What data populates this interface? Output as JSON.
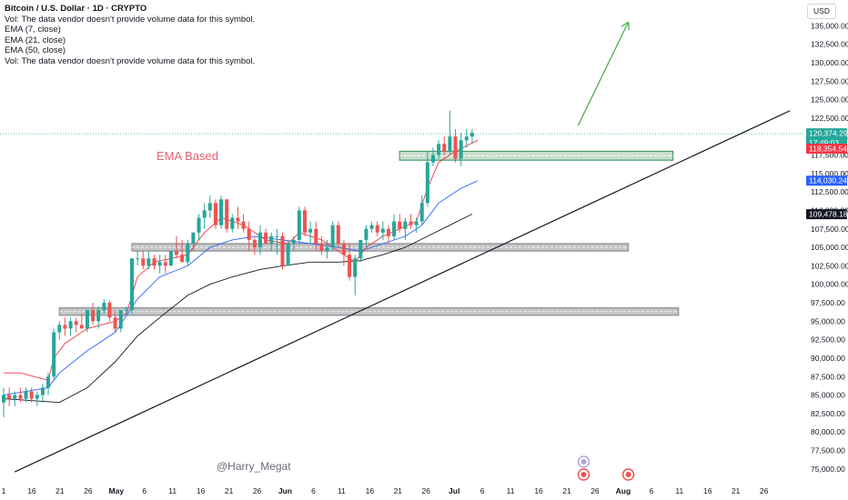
{
  "legend": {
    "title": "Bitcoin / U.S. Dollar · 1D · CRYPTO",
    "line1": "Vol: The data vendor doesn't provide volume data for this symbol.",
    "line2": "EMA (7, close)",
    "line3": "EMA (21, close)",
    "line4": "EMA (50, close)",
    "line5": "Vol: The data vendor doesn't provide volume data for this symbol."
  },
  "currency": "USD",
  "annotation": "EMA Based",
  "watermark": "@Harry_Megat",
  "colors": {
    "up": "#26a69a",
    "down": "#ef5350",
    "ema7": "#f23645",
    "ema21": "#2962ff",
    "ema50": "#131722",
    "arrow": "#4caf50",
    "zone_green": "#4c9a6a",
    "zone_gray": "#8a8c90"
  },
  "chart_data": {
    "type": "candlestick",
    "price_axis": {
      "ticks": [
        "135,000.00",
        "132,500.00",
        "130,000.00",
        "127,500.00",
        "125,000.00",
        "122,500.00",
        "120,000.00",
        "117,500.00",
        "115,000.00",
        "112,500.00",
        "110,000.00",
        "107,500.00",
        "105,000.00",
        "102,500.00",
        "100,000.00",
        "97,500.00",
        "95,000.00",
        "92,500.00",
        "90,000.00",
        "87,500.00",
        "85,000.00",
        "82,500.00",
        "80,000.00",
        "77,500.00",
        "75,000.00"
      ],
      "min": 73500,
      "max": 137500
    },
    "time_axis": {
      "labels": [
        "1",
        "16",
        "21",
        "26",
        "May",
        "6",
        "11",
        "16",
        "21",
        "26",
        "Jun",
        "6",
        "11",
        "16",
        "21",
        "26",
        "Jul",
        "6",
        "11",
        "16",
        "21",
        "26",
        "Aug",
        "6",
        "11",
        "16",
        "21",
        "26"
      ]
    },
    "price_tags": [
      {
        "value": 120374.29,
        "label": "120,374.29",
        "sublabel": "17:49:03",
        "color": "#26a69a"
      },
      {
        "value": 118354.54,
        "label": "118,354.54",
        "color": "#f23645"
      },
      {
        "value": 114030.24,
        "label": "114,030.24",
        "color": "#2962ff"
      },
      {
        "value": 109478.18,
        "label": "109,478.18",
        "color": "#131722"
      }
    ],
    "candles": [
      [
        84000,
        86000,
        82000,
        85000
      ],
      [
        85000,
        86000,
        83500,
        84500
      ],
      [
        84500,
        85500,
        83500,
        85000
      ],
      [
        85000,
        86000,
        84000,
        84500
      ],
      [
        84500,
        86000,
        84000,
        85500
      ],
      [
        85500,
        86000,
        84000,
        84500
      ],
      [
        84500,
        85500,
        83500,
        85000
      ],
      [
        85000,
        86500,
        84000,
        86000
      ],
      [
        86000,
        88000,
        85000,
        87500
      ],
      [
        87500,
        94000,
        87000,
        93500
      ],
      [
        93500,
        95000,
        92500,
        94500
      ],
      [
        94500,
        95500,
        93000,
        94000
      ],
      [
        94000,
        95500,
        93000,
        95000
      ],
      [
        95000,
        95500,
        93500,
        94500
      ],
      [
        94500,
        96000,
        94000,
        94000
      ],
      [
        94000,
        96500,
        93500,
        96500
      ],
      [
        96500,
        97500,
        94500,
        95000
      ],
      [
        95000,
        97000,
        94000,
        96500
      ],
      [
        96500,
        98000,
        96000,
        97500
      ],
      [
        97500,
        97800,
        95000,
        95500
      ],
      [
        95500,
        96500,
        93500,
        94000
      ],
      [
        94000,
        96500,
        93500,
        96500
      ],
      [
        96500,
        97000,
        96000,
        96500
      ],
      [
        96500,
        103500,
        96000,
        103500
      ],
      [
        103500,
        104500,
        102500,
        103500
      ],
      [
        103500,
        104500,
        102000,
        102500
      ],
      [
        102500,
        104500,
        102000,
        103500
      ],
      [
        103500,
        104000,
        102000,
        102500
      ],
      [
        102500,
        104000,
        101500,
        103000
      ],
      [
        103000,
        104000,
        101500,
        102500
      ],
      [
        102500,
        104500,
        102500,
        104500
      ],
      [
        104500,
        106500,
        103500,
        104000
      ],
      [
        104000,
        106000,
        103000,
        103000
      ],
      [
        103000,
        106000,
        102500,
        105500
      ],
      [
        105500,
        107000,
        104500,
        107000
      ],
      [
        107000,
        109500,
        106000,
        109000
      ],
      [
        109000,
        111000,
        107500,
        110000
      ],
      [
        110000,
        112000,
        109000,
        111000
      ],
      [
        111000,
        111500,
        107500,
        108000
      ],
      [
        108000,
        112000,
        107500,
        111500
      ],
      [
        111500,
        111500,
        107000,
        107500
      ],
      [
        107500,
        109500,
        107000,
        109000
      ],
      [
        109000,
        110500,
        107500,
        108500
      ],
      [
        108500,
        109500,
        107000,
        107500
      ],
      [
        107500,
        108500,
        104500,
        106000
      ],
      [
        106000,
        106500,
        104000,
        105000
      ],
      [
        105000,
        108000,
        104000,
        107000
      ],
      [
        107000,
        107500,
        105500,
        105500
      ],
      [
        105500,
        107000,
        104500,
        106500
      ],
      [
        106500,
        107500,
        104000,
        106500
      ],
      [
        106500,
        107000,
        102000,
        102500
      ],
      [
        102500,
        106000,
        102500,
        105500
      ],
      [
        105500,
        106500,
        104500,
        106000
      ],
      [
        106000,
        110500,
        105500,
        110000
      ],
      [
        110000,
        110500,
        106500,
        107000
      ],
      [
        107000,
        108500,
        105500,
        107500
      ],
      [
        107500,
        108500,
        104500,
        105500
      ],
      [
        105500,
        106500,
        104000,
        104500
      ],
      [
        104500,
        106000,
        103500,
        105000
      ],
      [
        105000,
        108500,
        104500,
        108000
      ],
      [
        108000,
        108500,
        105000,
        105500
      ],
      [
        105500,
        106000,
        102500,
        104000
      ],
      [
        104000,
        105500,
        100500,
        101000
      ],
      [
        101000,
        104000,
        98500,
        103500
      ],
      [
        103500,
        106000,
        103000,
        106000
      ],
      [
        106000,
        108000,
        105000,
        107500
      ],
      [
        107500,
        108500,
        107000,
        108000
      ],
      [
        108000,
        108500,
        106500,
        107000
      ],
      [
        107000,
        108500,
        106000,
        107500
      ],
      [
        107500,
        108000,
        105500,
        106500
      ],
      [
        106500,
        109500,
        106000,
        108500
      ],
      [
        108500,
        109500,
        107000,
        107500
      ],
      [
        107500,
        109000,
        106000,
        108500
      ],
      [
        108500,
        109500,
        107500,
        108000
      ],
      [
        108000,
        109000,
        107000,
        108500
      ],
      [
        108500,
        112000,
        108000,
        111000
      ],
      [
        111000,
        118000,
        110500,
        116500
      ],
      [
        116500,
        118500,
        116000,
        117500
      ],
      [
        117500,
        119500,
        117000,
        119000
      ],
      [
        119000,
        120000,
        117500,
        118000
      ],
      [
        118000,
        123500,
        117500,
        120000
      ],
      [
        120000,
        121000,
        116500,
        117000
      ],
      [
        117000,
        120500,
        116000,
        119500
      ],
      [
        119500,
        121000,
        118500,
        120000
      ],
      [
        120000,
        121000,
        119000,
        120500
      ]
    ],
    "ema7": [
      [
        0,
        88
      ],
      [
        3,
        88
      ],
      [
        8,
        87
      ],
      [
        9,
        90
      ],
      [
        11,
        92
      ],
      [
        15,
        94
      ],
      [
        20,
        95
      ],
      [
        22,
        96
      ],
      [
        24,
        101
      ],
      [
        27,
        103
      ],
      [
        30,
        103.5
      ],
      [
        33,
        104
      ],
      [
        36,
        107
      ],
      [
        39,
        109
      ],
      [
        43,
        108
      ],
      [
        47,
        106
      ],
      [
        51,
        105.5
      ],
      [
        53,
        107
      ],
      [
        57,
        106
      ],
      [
        61,
        104
      ],
      [
        63,
        103
      ],
      [
        65,
        105
      ],
      [
        68,
        106.5
      ],
      [
        71,
        107.5
      ],
      [
        74,
        108.5
      ],
      [
        76,
        113
      ],
      [
        78,
        116.5
      ],
      [
        81,
        118
      ],
      [
        85,
        119.5
      ]
    ],
    "ema21": [
      [
        0,
        85
      ],
      [
        8,
        86
      ],
      [
        10,
        88
      ],
      [
        15,
        91
      ],
      [
        20,
        93.5
      ],
      [
        24,
        98
      ],
      [
        28,
        101
      ],
      [
        33,
        102.5
      ],
      [
        37,
        105
      ],
      [
        41,
        106
      ],
      [
        45,
        106.5
      ],
      [
        50,
        106
      ],
      [
        55,
        105.5
      ],
      [
        60,
        105
      ],
      [
        64,
        104.5
      ],
      [
        68,
        105.5
      ],
      [
        72,
        106.5
      ],
      [
        75,
        108
      ],
      [
        78,
        111
      ],
      [
        82,
        113
      ],
      [
        85,
        114
      ]
    ],
    "ema50": [
      [
        0,
        84.5
      ],
      [
        10,
        84
      ],
      [
        15,
        86
      ],
      [
        20,
        89.5
      ],
      [
        24,
        93
      ],
      [
        28,
        95.5
      ],
      [
        33,
        98.5
      ],
      [
        37,
        100
      ],
      [
        41,
        101
      ],
      [
        46,
        102
      ],
      [
        50,
        102.5
      ],
      [
        55,
        103
      ],
      [
        60,
        103
      ],
      [
        64,
        103.2
      ],
      [
        68,
        104
      ],
      [
        72,
        105
      ],
      [
        76,
        106.5
      ],
      [
        80,
        108
      ],
      [
        84,
        109.5
      ]
    ],
    "zones": [
      {
        "from": 71,
        "to": 120,
        "low": 116800,
        "high": 118000,
        "color": "green"
      },
      {
        "from": 23,
        "to": 112,
        "low": 104500,
        "high": 105500,
        "color": "gray"
      },
      {
        "from": 10,
        "to": 121,
        "low": 95800,
        "high": 96800,
        "color": "gray"
      }
    ],
    "trendline": {
      "from": [
        2,
        74600
      ],
      "to": [
        141,
        123500
      ]
    },
    "projection_arrow": {
      "from": [
        103,
        121500
      ],
      "to": [
        112,
        135500
      ]
    },
    "grid": false,
    "legend_position": "top-left"
  }
}
